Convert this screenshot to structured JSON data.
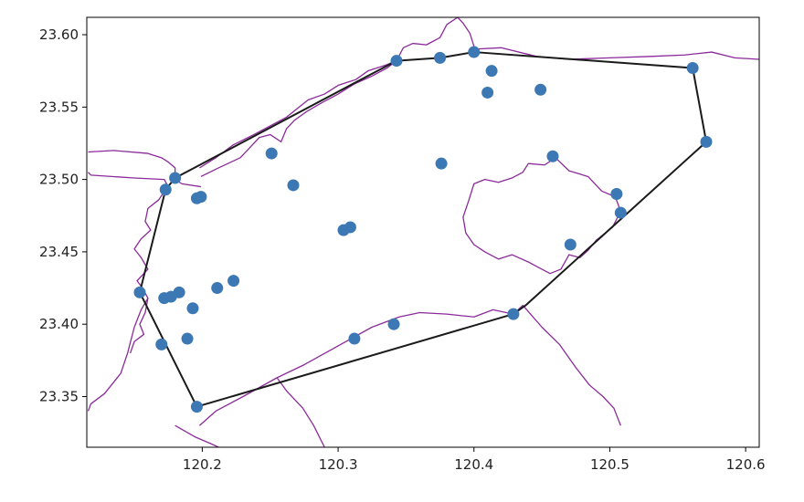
{
  "chart_data": {
    "type": "scatter",
    "title": "",
    "xlabel": "",
    "ylabel": "",
    "xlim": [
      120.115,
      120.61
    ],
    "ylim": [
      23.315,
      23.612
    ],
    "grid": false,
    "xticks": [
      120.2,
      120.3,
      120.4,
      120.5,
      120.6
    ],
    "xtick_labels": [
      "120.2",
      "120.3",
      "120.4",
      "120.5",
      "120.6"
    ],
    "yticks": [
      23.35,
      23.4,
      23.45,
      23.5,
      23.55,
      23.6
    ],
    "ytick_labels": [
      "23.35",
      "23.40",
      "23.45",
      "23.50",
      "23.55",
      "23.60"
    ],
    "colors": {
      "points": "#3c78b3",
      "hull": "#1a1a1a",
      "boundary": "#8b2a9a"
    },
    "points": {
      "x": [
        120.4,
        120.375,
        120.343,
        120.413,
        120.41,
        120.449,
        120.561,
        120.571,
        120.251,
        120.18,
        120.173,
        120.199,
        120.196,
        120.267,
        120.376,
        120.458,
        120.505,
        120.508,
        120.471,
        120.309,
        120.304,
        120.223,
        120.211,
        120.183,
        120.177,
        120.172,
        120.154,
        120.193,
        120.189,
        120.17,
        120.341,
        120.312,
        120.429,
        120.196
      ],
      "y": [
        23.588,
        23.584,
        23.582,
        23.575,
        23.56,
        23.562,
        23.577,
        23.526,
        23.518,
        23.501,
        23.493,
        23.488,
        23.487,
        23.496,
        23.511,
        23.516,
        23.49,
        23.477,
        23.455,
        23.467,
        23.465,
        23.43,
        23.425,
        23.422,
        23.419,
        23.418,
        23.422,
        23.411,
        23.39,
        23.386,
        23.4,
        23.39,
        23.407,
        23.343
      ]
    },
    "hull": {
      "x": [
        120.196,
        120.154,
        120.173,
        120.18,
        120.343,
        120.375,
        120.4,
        120.561,
        120.571,
        120.438,
        120.429,
        120.196
      ],
      "y": [
        23.343,
        23.422,
        23.493,
        23.501,
        23.582,
        23.584,
        23.588,
        23.577,
        23.526,
        23.413,
        23.407,
        23.343
      ]
    },
    "boundaries": [
      {
        "x": [
          120.116,
          120.135,
          120.16,
          120.17,
          120.175,
          120.18,
          120.18,
          120.185,
          120.199
        ],
        "y": [
          23.519,
          23.52,
          23.518,
          23.515,
          23.512,
          23.508,
          23.5,
          23.497,
          23.495
        ]
      },
      {
        "x": [
          120.116,
          120.118,
          120.15,
          120.172,
          120.176
        ],
        "y": [
          23.505,
          23.503,
          23.501,
          23.5,
          23.493
        ]
      },
      {
        "x": [
          120.173,
          120.168,
          120.16,
          120.158,
          120.162,
          120.155,
          120.15,
          120.155,
          120.16,
          120.152,
          120.156,
          120.16,
          120.158,
          120.154,
          120.157,
          120.15,
          120.147
        ],
        "y": [
          23.493,
          23.486,
          23.48,
          23.471,
          23.465,
          23.459,
          23.452,
          23.446,
          23.438,
          23.43,
          23.425,
          23.418,
          23.408,
          23.4,
          23.393,
          23.388,
          23.38
        ]
      },
      {
        "x": [
          120.16,
          120.155,
          120.15,
          120.145,
          120.14,
          120.128,
          120.118,
          120.116
        ],
        "y": [
          23.418,
          23.41,
          23.398,
          23.38,
          23.366,
          23.352,
          23.345,
          23.34
        ]
      },
      {
        "x": [
          120.199,
          120.212,
          120.228,
          120.236,
          120.242,
          120.25,
          120.258,
          120.262,
          120.268,
          120.277,
          120.288,
          120.3,
          120.312,
          120.324,
          120.336,
          120.343
        ],
        "y": [
          23.502,
          23.508,
          23.515,
          23.523,
          23.529,
          23.531,
          23.526,
          23.535,
          23.541,
          23.547,
          23.553,
          23.559,
          23.566,
          23.571,
          23.577,
          23.582
        ]
      },
      {
        "x": [
          120.343,
          120.335,
          120.322,
          120.313,
          120.3,
          120.29,
          120.278,
          120.27,
          120.262,
          120.25,
          120.238,
          120.223,
          120.21,
          120.198
        ],
        "y": [
          23.582,
          23.579,
          23.575,
          23.569,
          23.565,
          23.559,
          23.555,
          23.549,
          23.543,
          23.537,
          23.531,
          23.524,
          23.515,
          23.508
        ]
      },
      {
        "x": [
          120.343,
          120.348,
          120.355,
          120.365,
          120.375,
          120.38,
          120.388,
          120.392,
          120.397,
          120.4
        ],
        "y": [
          23.582,
          23.591,
          23.594,
          23.593,
          23.598,
          23.607,
          23.612,
          23.608,
          23.601,
          23.592
        ]
      },
      {
        "x": [
          120.4,
          120.42,
          120.446,
          120.47,
          120.5,
          120.53,
          120.555,
          120.575,
          120.592,
          120.61
        ],
        "y": [
          23.59,
          23.591,
          23.585,
          23.583,
          23.584,
          23.585,
          23.586,
          23.588,
          23.584,
          23.583
        ]
      },
      {
        "x": [
          120.44,
          120.452,
          120.46,
          120.47,
          120.484,
          120.494,
          120.504,
          120.508,
          120.502,
          120.49,
          120.484,
          120.478,
          120.47,
          120.464,
          120.456,
          120.446,
          120.44,
          120.428,
          120.418,
          120.408,
          120.4,
          120.394,
          120.392,
          120.396,
          120.4,
          120.408,
          120.418,
          120.428,
          120.436,
          120.44
        ],
        "y": [
          23.511,
          23.51,
          23.515,
          23.506,
          23.502,
          23.492,
          23.488,
          23.478,
          23.467,
          23.458,
          23.451,
          23.446,
          23.448,
          23.438,
          23.435,
          23.44,
          23.443,
          23.448,
          23.445,
          23.45,
          23.455,
          23.463,
          23.474,
          23.485,
          23.497,
          23.5,
          23.498,
          23.501,
          23.505,
          23.511
        ]
      },
      {
        "x": [
          120.198,
          120.21,
          120.23,
          120.255,
          120.275,
          120.3,
          120.325,
          120.345,
          120.36,
          120.38,
          120.4,
          120.414,
          120.429
        ],
        "y": [
          23.33,
          23.34,
          23.35,
          23.363,
          23.372,
          23.385,
          23.398,
          23.405,
          23.408,
          23.407,
          23.405,
          23.41,
          23.407
        ]
      },
      {
        "x": [
          120.429,
          120.436,
          120.45,
          120.463,
          120.475,
          120.485,
          120.495,
          120.503,
          120.508
        ],
        "y": [
          23.407,
          23.413,
          23.398,
          23.386,
          23.37,
          23.358,
          23.35,
          23.342,
          23.33
        ]
      },
      {
        "x": [
          120.255,
          120.262,
          120.274,
          120.282,
          120.29
        ],
        "y": [
          23.363,
          23.354,
          23.342,
          23.33,
          23.315
        ]
      },
      {
        "x": [
          120.18,
          120.195,
          120.205,
          120.212
        ],
        "y": [
          23.33,
          23.322,
          23.318,
          23.315
        ]
      }
    ]
  }
}
